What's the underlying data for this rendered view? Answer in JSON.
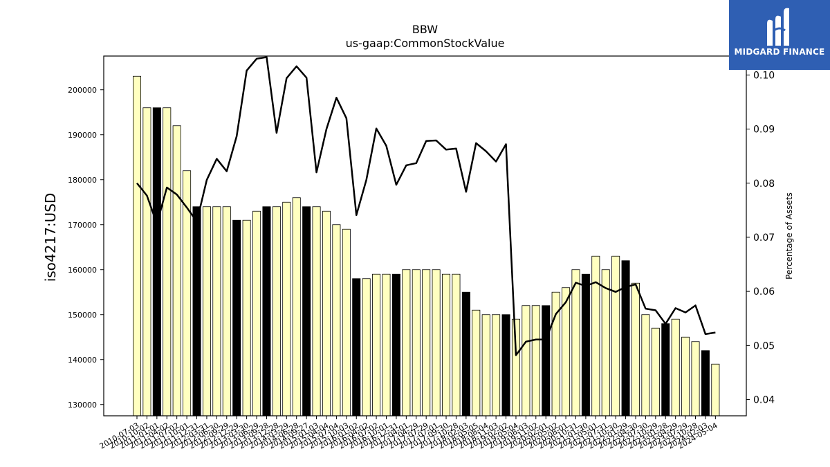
{
  "chart_data": {
    "type": "bar",
    "title": "BBW",
    "subtitle": "us-gaap:CommonStockValue",
    "ylabel": "iso4217:USD",
    "y2label": "Percentage of Assets",
    "ylim": [
      127500,
      207500
    ],
    "y2lim": [
      0.037,
      0.1035
    ],
    "yticks": [
      130000,
      140000,
      150000,
      160000,
      170000,
      180000,
      190000,
      200000
    ],
    "y2ticks": [
      0.04,
      0.05,
      0.06,
      0.07,
      0.08,
      0.09,
      0.1
    ],
    "y2tick_labels": [
      "0.04",
      "0.05",
      "0.06",
      "0.07",
      "0.08",
      "0.09",
      "0.10"
    ],
    "bar_colors": {
      "default": "#ffffc0",
      "highlight": "#000000"
    },
    "line_color": "#000000",
    "categories": [
      "2010-07-03",
      "2010-10-02",
      "2011-01-01",
      "2011-04-02",
      "2011-07-02",
      "2011-10-01",
      "2011-12-31",
      "2012-03-31",
      "2012-06-30",
      "2012-09-29",
      "2012-12-29",
      "2013-03-30",
      "2013-06-29",
      "2013-09-28",
      "2013-12-28",
      "2014-03-29",
      "2014-06-28",
      "2014-09-27",
      "2015-01-03",
      "2015-04-04",
      "2015-07-04",
      "2015-10-03",
      "2016-01-02",
      "2016-04-02",
      "2016-07-02",
      "2016-10-01",
      "2016-12-31",
      "2017-04-01",
      "2017-04-29",
      "2017-07-29",
      "2017-07-01",
      "2017-09-30",
      "2017-10-28",
      "2018-02-03",
      "2018-05-05",
      "2018-08-04",
      "2018-11-03",
      "2019-02-02",
      "2019-05-04",
      "2019-08-03",
      "2019-11-02",
      "2020-02-01",
      "2020-05-02",
      "2020-08-01",
      "2020-10-31",
      "2021-01-30",
      "2021-05-01",
      "2021-07-31",
      "2021-10-30",
      "2022-01-29",
      "2022-04-30",
      "2022-07-30",
      "2022-10-29",
      "2023-01-28",
      "2023-04-29",
      "2023-07-29",
      "2023-10-28",
      "2024-02-03",
      "2024-05-04"
    ],
    "values": [
      203000,
      196000,
      196000,
      196000,
      192000,
      182000,
      174000,
      174000,
      174000,
      174000,
      171000,
      171000,
      173000,
      174000,
      174000,
      175000,
      176000,
      174000,
      174000,
      173000,
      170000,
      169000,
      158000,
      158000,
      159000,
      159000,
      159000,
      160000,
      160000,
      160000,
      160000,
      159000,
      159000,
      155000,
      151000,
      150000,
      150000,
      150000,
      149000,
      152000,
      152000,
      152000,
      155000,
      156000,
      160000,
      159000,
      163000,
      160000,
      163000,
      162000,
      157000,
      150000,
      147000,
      148000,
      149000,
      145000,
      144000,
      142000,
      139000
    ],
    "highlight": [
      false,
      false,
      true,
      false,
      false,
      false,
      true,
      false,
      false,
      false,
      true,
      false,
      false,
      true,
      false,
      false,
      false,
      true,
      false,
      false,
      false,
      false,
      true,
      false,
      false,
      false,
      true,
      false,
      false,
      false,
      false,
      false,
      false,
      true,
      false,
      false,
      false,
      true,
      false,
      false,
      false,
      true,
      false,
      false,
      false,
      true,
      false,
      false,
      false,
      true,
      false,
      false,
      false,
      true,
      false,
      false,
      false,
      true,
      false
    ],
    "pct_of_assets": [
      0.08,
      0.0777,
      0.0725,
      0.0792,
      0.0779,
      0.0755,
      0.0729,
      0.0806,
      0.0845,
      0.0822,
      0.0887,
      0.1008,
      0.103,
      0.1033,
      0.0893,
      0.0994,
      0.1016,
      0.0995,
      0.082,
      0.09,
      0.0958,
      0.092,
      0.0741,
      0.0806,
      0.0901,
      0.0869,
      0.0797,
      0.0833,
      0.0837,
      0.0878,
      0.0879,
      0.0862,
      0.0864,
      0.0784,
      0.0874,
      0.0859,
      0.084,
      0.0872,
      0.0482,
      0.0507,
      0.0511,
      0.0511,
      0.0558,
      0.058,
      0.0616,
      0.061,
      0.0617,
      0.0606,
      0.0599,
      0.0608,
      0.0613,
      0.0568,
      0.0565,
      0.054,
      0.0569,
      0.0561,
      0.0574,
      0.0521,
      0.0524
    ]
  },
  "logo": {
    "text": "MIDGARD FINANCE",
    "icon": "midgard-logo-icon"
  }
}
